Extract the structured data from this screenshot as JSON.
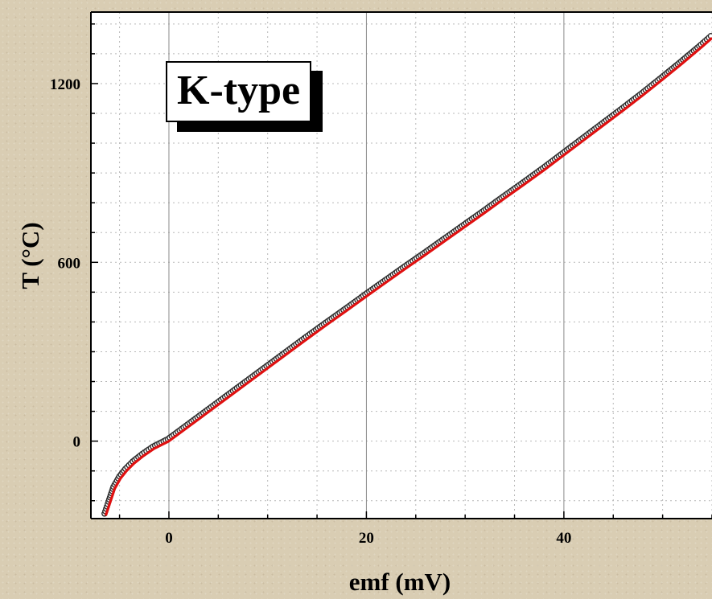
{
  "chart_data": {
    "type": "line",
    "title": "K-type",
    "xlabel": "emf (mV)",
    "ylabel": "T (°C)",
    "xlim": [
      -7.9,
      55
    ],
    "ylim": [
      -260,
      1440
    ],
    "x_ticks": [
      0,
      20,
      40
    ],
    "x_tick_labels": [
      "0",
      "20",
      "40"
    ],
    "y_ticks": [
      0,
      600,
      1200
    ],
    "y_tick_labels": [
      "0",
      "600",
      "1200"
    ],
    "grid": true,
    "legend": "none",
    "series": [
      {
        "style": "markers",
        "color": "#3a3a3a",
        "x": [
          -6.4,
          -6.0,
          -5.5,
          -4.9,
          -4.3,
          -3.55,
          -2.6,
          -1.5,
          0,
          2,
          4,
          6,
          8,
          10,
          12,
          14,
          16,
          18,
          20,
          22,
          24,
          26,
          28,
          30,
          32,
          34,
          36,
          38,
          40,
          42,
          44,
          46,
          48,
          50,
          52,
          54,
          55
        ],
        "y": [
          -250,
          -210,
          -160,
          -125,
          -100,
          -75,
          -50,
          -25,
          0,
          49,
          98,
          147,
          196,
          245,
          294,
          343,
          391,
          438,
          486,
          533,
          580,
          626,
          673,
          720,
          767,
          815,
          862,
          910,
          960,
          1010,
          1060,
          1110,
          1161,
          1214,
          1268,
          1324,
          1353
        ]
      },
      {
        "style": "line",
        "color": "#e01010",
        "x": [
          -6.4,
          -6.0,
          -5.5,
          -4.9,
          -4.3,
          -3.55,
          -2.6,
          -1.5,
          0,
          2,
          4,
          6,
          8,
          10,
          12,
          14,
          16,
          18,
          20,
          22,
          24,
          26,
          28,
          30,
          32,
          34,
          36,
          38,
          40,
          42,
          44,
          46,
          48,
          50,
          52,
          54,
          55
        ],
        "y": [
          -250,
          -210,
          -160,
          -125,
          -100,
          -75,
          -50,
          -25,
          0,
          49,
          98,
          147,
          196,
          245,
          294,
          343,
          391,
          438,
          486,
          533,
          580,
          626,
          673,
          720,
          767,
          815,
          862,
          910,
          960,
          1010,
          1060,
          1110,
          1161,
          1214,
          1268,
          1324,
          1353
        ]
      }
    ]
  }
}
